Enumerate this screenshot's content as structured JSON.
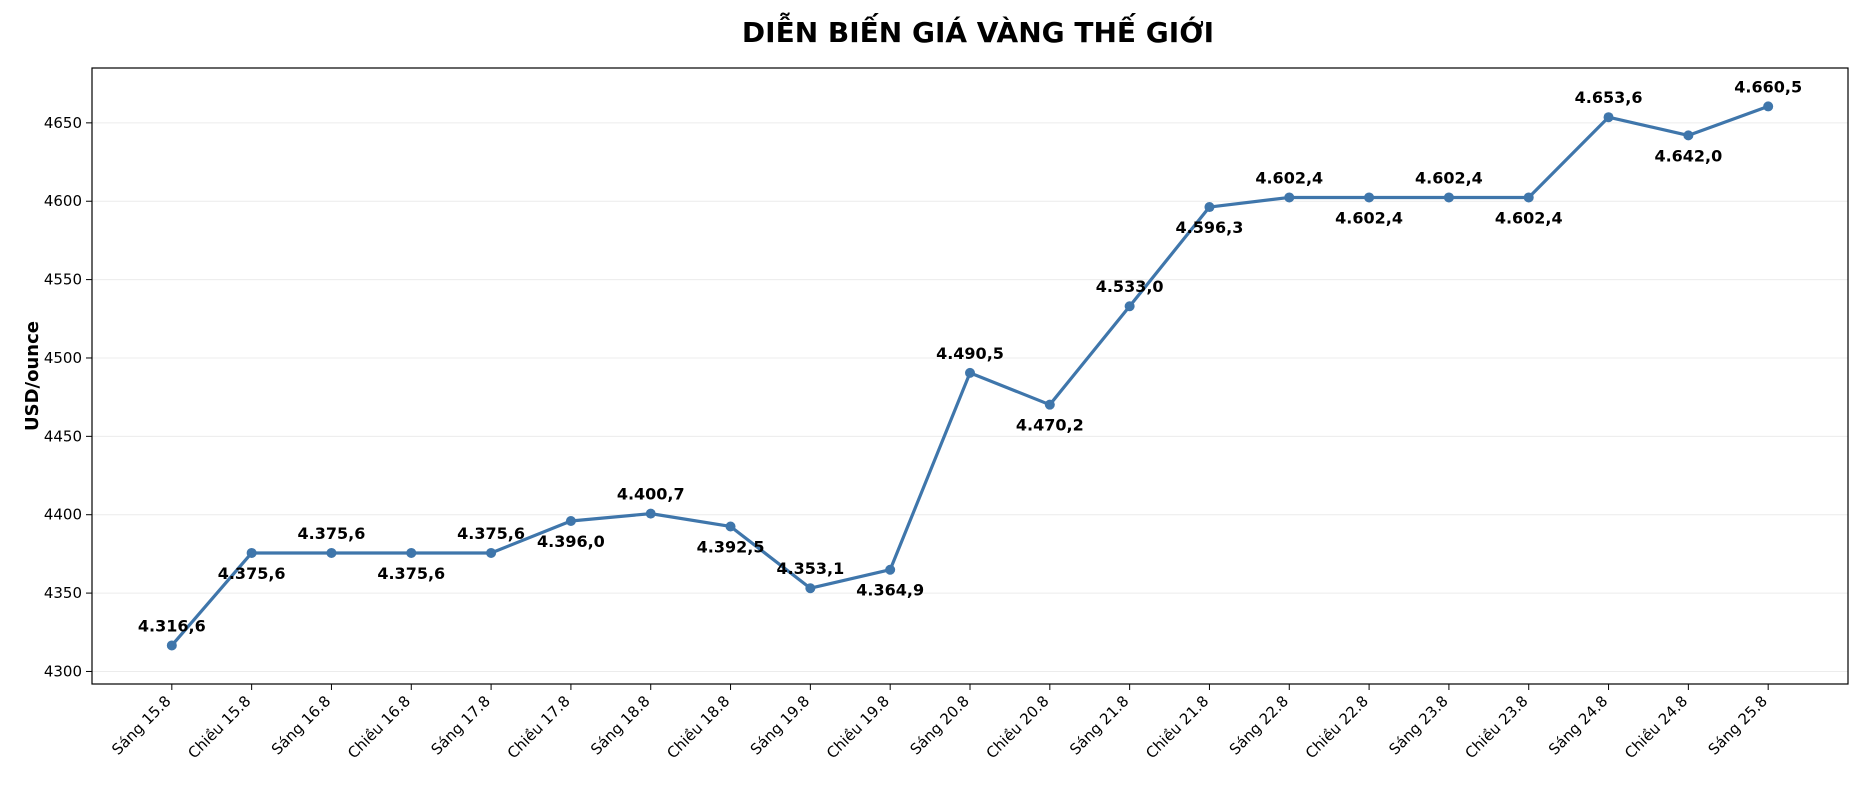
{
  "chart_data": {
    "type": "line",
    "title": "DIỄN BIẾN GIÁ VÀNG THẾ GIỚI",
    "y_label": "USD/ounce",
    "categories": [
      "Sáng 15.8",
      "Chiều 15.8",
      "Sáng 16.8",
      "Chiều 16.8",
      "Sáng 17.8",
      "Chiều 17.8",
      "Sáng 18.8",
      "Chiều 18.8",
      "Sáng 19.8",
      "Chiều 19.8",
      "Sáng 20.8",
      "Chiều 20.8",
      "Sáng 21.8",
      "Chiều 21.8",
      "Sáng 22.8",
      "Chiều 22.8",
      "Sáng 23.8",
      "Chiều 23.8",
      "Sáng 24.8",
      "Chiều 24.8",
      "Sáng 25.8"
    ],
    "values": [
      4316.6,
      4375.6,
      4375.6,
      4375.6,
      4375.6,
      4396.0,
      4400.7,
      4392.5,
      4353.1,
      4364.9,
      4490.5,
      4470.2,
      4533.0,
      4596.3,
      4602.4,
      4602.4,
      4602.4,
      4602.4,
      4653.6,
      4642.0,
      4660.5
    ],
    "value_labels": [
      "4.316,6",
      "4.375,6",
      "4.375,6",
      "4.375,6",
      "4.375,6",
      "4.396,0",
      "4.400,7",
      "4.392,5",
      "4.353,1",
      "4.364,9",
      "4.490,5",
      "4.470,2",
      "4.533,0",
      "4.596,3",
      "4.602,4",
      "4.602,4",
      "4.602,4",
      "4.602,4",
      "4.653,6",
      "4.642,0",
      "4.660,5"
    ],
    "color": "#3f76ab",
    "ylim": [
      4292,
      4685
    ],
    "yticks": [
      4300,
      4350,
      4400,
      4450,
      4500,
      4550,
      4600,
      4650
    ],
    "grid": true
  }
}
